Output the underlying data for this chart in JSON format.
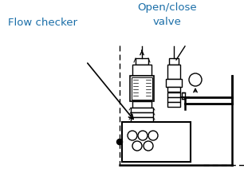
{
  "bg_color": "#ffffff",
  "text_color": "#1a6ea8",
  "line_color": "#000000",
  "label_flow_checker": "Flow checker",
  "label_open_close": "Open/close\nvalve",
  "label_font_size": 9.5,
  "fig_width": 3.06,
  "fig_height": 2.17,
  "dpi": 100
}
